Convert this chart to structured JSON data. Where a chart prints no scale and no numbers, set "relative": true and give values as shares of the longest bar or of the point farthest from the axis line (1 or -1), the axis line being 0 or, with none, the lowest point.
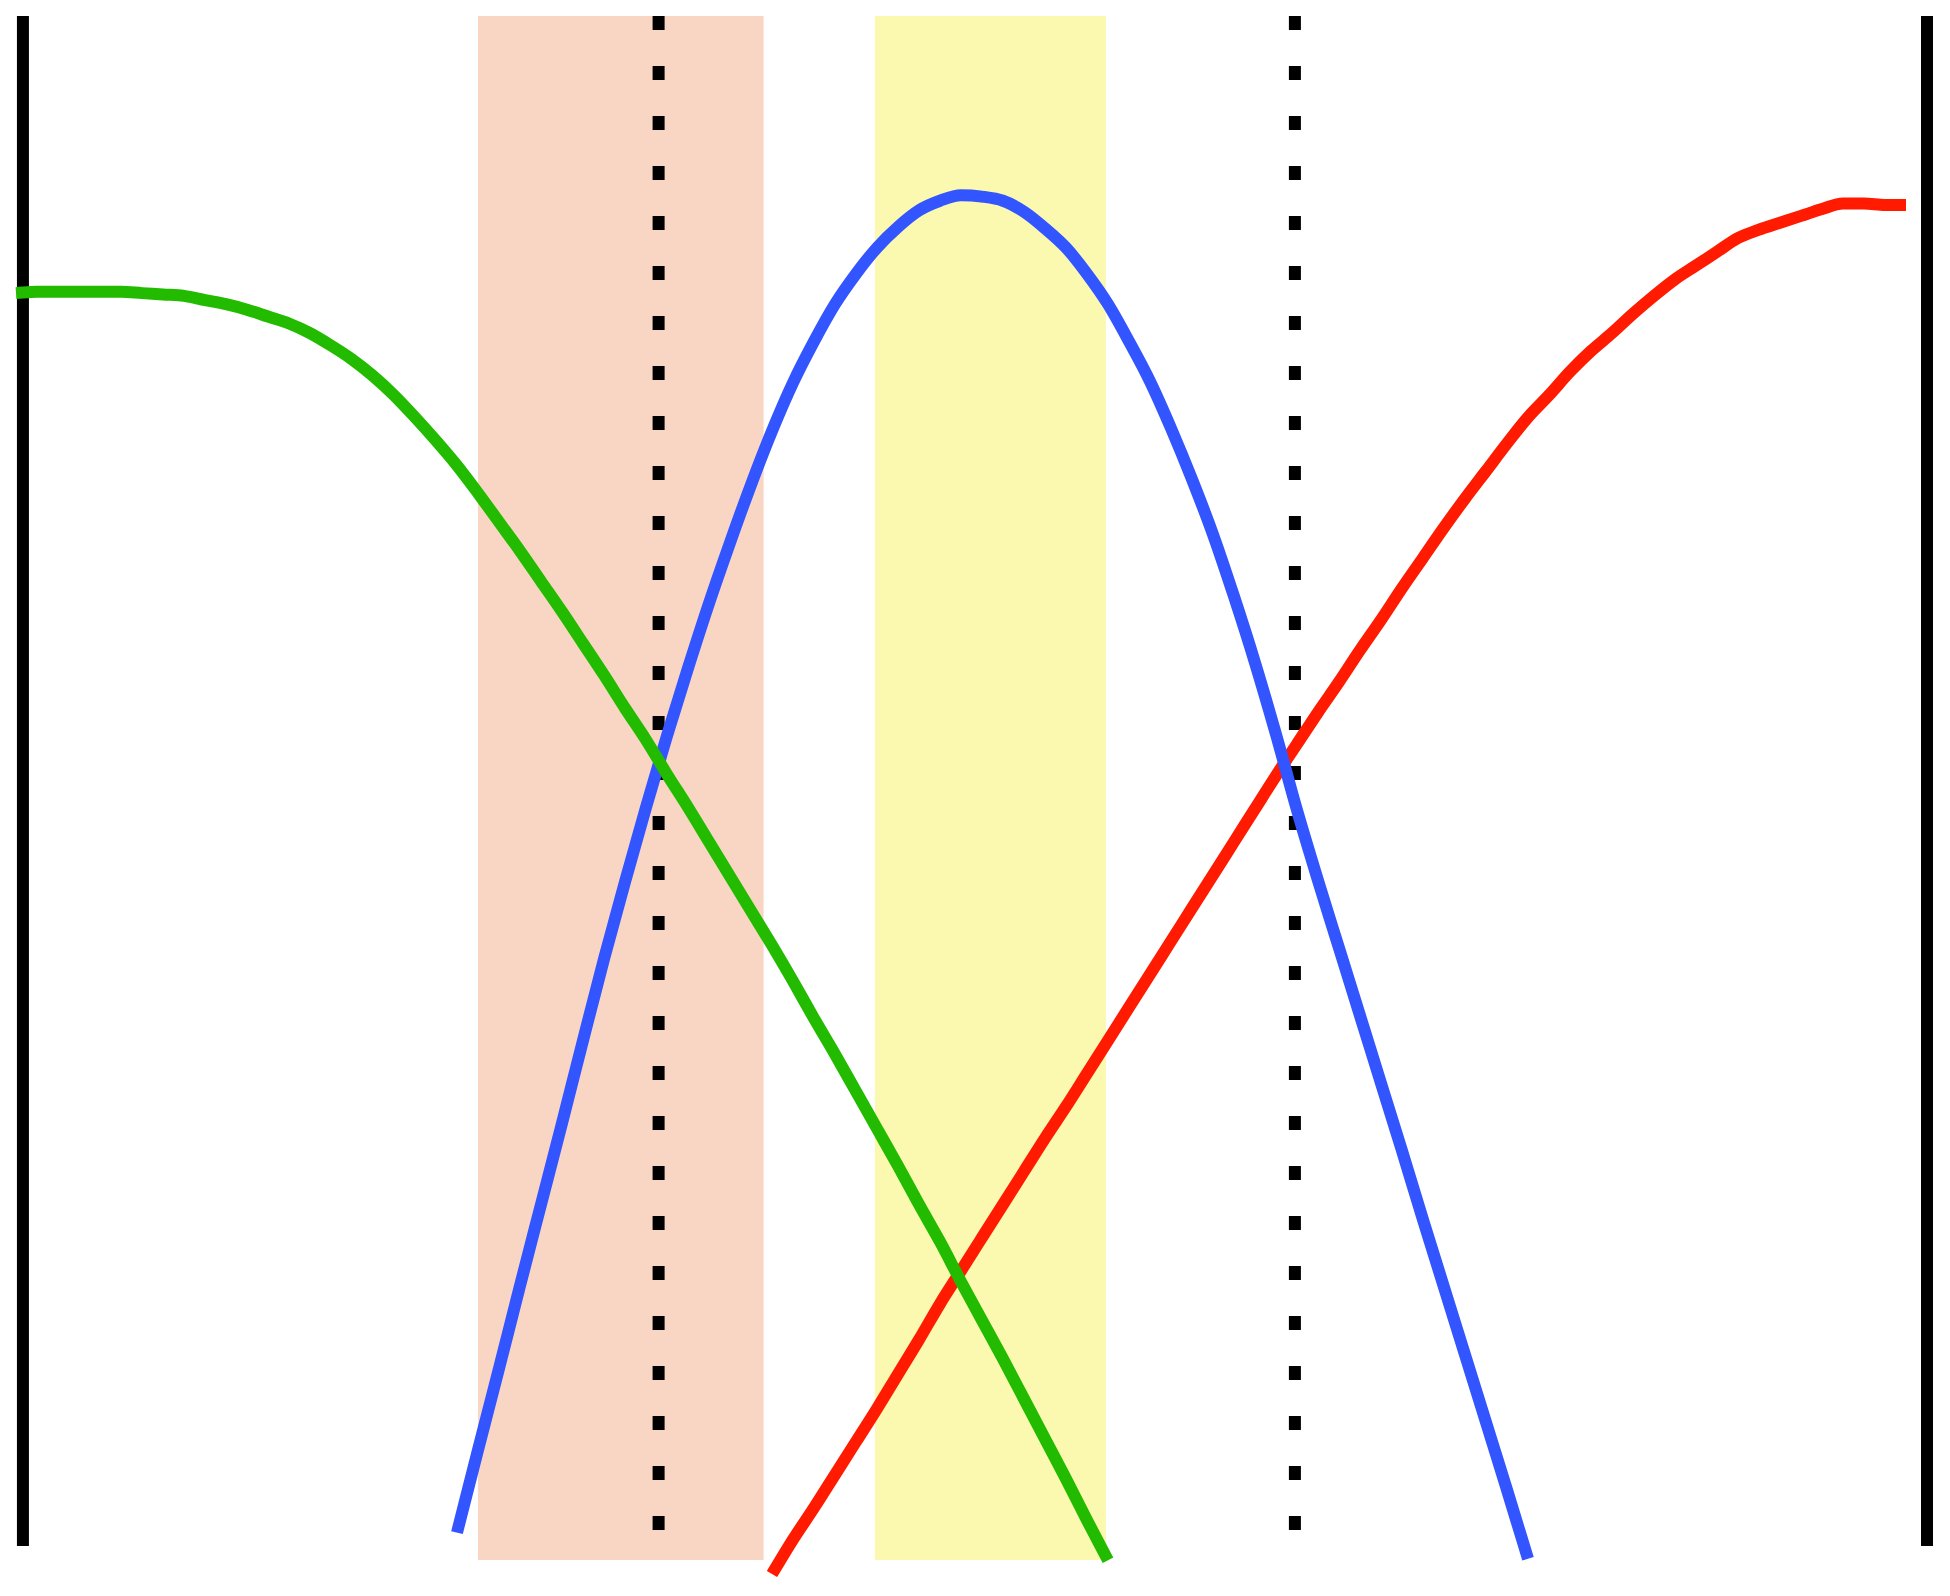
{
  "chart_data": {
    "type": "line",
    "relative": true,
    "tick_labels": false,
    "marker": "none",
    "line_style": "solid",
    "categories": [
      null,
      null,
      null,
      null,
      null,
      null,
      null,
      null,
      null,
      null,
      null,
      null,
      null,
      null,
      null,
      null,
      null,
      null,
      null,
      null,
      null,
      null,
      null,
      null,
      null,
      null,
      null,
      null,
      null,
      null,
      null,
      null,
      null,
      null,
      null,
      null,
      null,
      null,
      null,
      null,
      null,
      null,
      null,
      null,
      null,
      null,
      null,
      null,
      null,
      null,
      null,
      null,
      null,
      null,
      null,
      null,
      null,
      null,
      null,
      null,
      null,
      null,
      null,
      null,
      null,
      null,
      null,
      null,
      null,
      null,
      null,
      null,
      null,
      null,
      null,
      null,
      null,
      null,
      null,
      null,
      null,
      null,
      null,
      null,
      null,
      null,
      null,
      null,
      null,
      null,
      null,
      null
    ],
    "series": [
      {
        "color": "#22bb00",
        "values": [
          0.929,
          0.93,
          0.93,
          0.93,
          0.93,
          0.93,
          0.929,
          0.928,
          0.927,
          0.924,
          0.921,
          0.917,
          0.912,
          0.907,
          0.9,
          0.891,
          0.881,
          0.869,
          0.855,
          0.839,
          0.822,
          0.804,
          0.784,
          0.763,
          0.742,
          0.72,
          0.698,
          0.675,
          0.652,
          0.628,
          0.605,
          0.58,
          0.556,
          0.531,
          0.506,
          0.481,
          0.456,
          0.43,
          0.403,
          0.377,
          0.35,
          0.323,
          0.296,
          0.268,
          0.241,
          0.212,
          0.184,
          0.156,
          0.127,
          0.098,
          0.069,
          0.039,
          0.01,
          null,
          null,
          null,
          null,
          null,
          null,
          null,
          null,
          null,
          null,
          null,
          null,
          null,
          null,
          null,
          null,
          null,
          null,
          null,
          null,
          null,
          null,
          null,
          null,
          null,
          null,
          null,
          null,
          null,
          null,
          null,
          null,
          null,
          null,
          null,
          null,
          null,
          null,
          null
        ]
      },
      {
        "color": "#3355ff",
        "values": [
          null,
          null,
          null,
          null,
          null,
          null,
          null,
          null,
          null,
          null,
          null,
          null,
          null,
          null,
          null,
          null,
          null,
          null,
          null,
          null,
          null,
          0.03,
          0.09,
          0.149,
          0.209,
          0.268,
          0.327,
          0.387,
          0.446,
          0.502,
          0.556,
          0.608,
          0.657,
          0.704,
          0.748,
          0.79,
          0.829,
          0.864,
          0.894,
          0.921,
          0.943,
          0.962,
          0.977,
          0.989,
          0.996,
          1,
          0.999,
          0.996,
          0.988,
          0.976,
          0.962,
          0.943,
          0.921,
          0.894,
          0.865,
          0.831,
          0.794,
          0.754,
          0.709,
          0.661,
          0.609,
          0.554,
          0.503,
          0.454,
          0.405,
          0.356,
          0.307,
          0.257,
          0.208,
          0.159,
          0.11,
          0.061,
          0.011,
          null,
          null,
          null,
          null,
          null,
          null,
          null,
          null,
          null,
          null,
          null,
          null,
          null,
          null,
          null,
          null,
          null,
          null,
          null
        ]
      },
      {
        "color": "#ff1a00",
        "values": [
          null,
          null,
          null,
          null,
          null,
          null,
          null,
          null,
          null,
          null,
          null,
          null,
          null,
          null,
          null,
          null,
          null,
          null,
          null,
          null,
          null,
          null,
          null,
          null,
          null,
          null,
          null,
          null,
          null,
          null,
          null,
          null,
          null,
          null,
          null,
          null,
          0,
          0.025,
          0.048,
          0.072,
          0.096,
          0.12,
          0.145,
          0.17,
          0.196,
          0.22,
          0.244,
          0.268,
          0.292,
          0.316,
          0.339,
          0.363,
          0.387,
          0.411,
          0.435,
          0.459,
          0.483,
          0.507,
          0.531,
          0.555,
          0.579,
          0.602,
          0.625,
          0.647,
          0.67,
          0.692,
          0.715,
          0.737,
          0.759,
          0.78,
          0.8,
          0.82,
          0.839,
          0.855,
          0.872,
          0.887,
          0.9,
          0.914,
          0.927,
          0.939,
          0.949,
          0.959,
          0.969,
          0.975,
          0.98,
          0.985,
          0.99,
          0.994,
          0.994,
          0.993,
          0.993,
          null
        ]
      }
    ]
  }
}
